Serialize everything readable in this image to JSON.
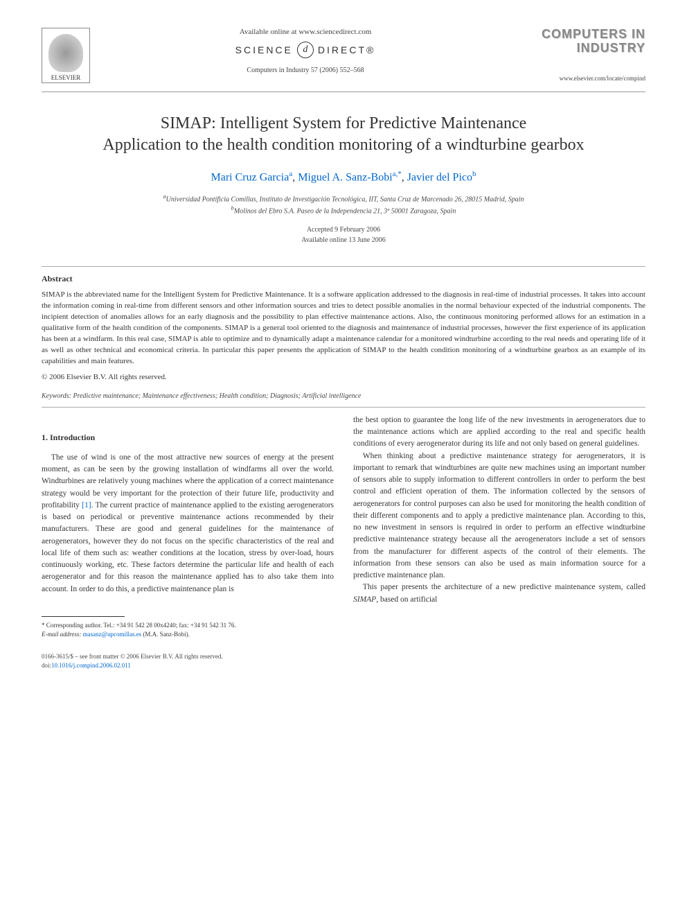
{
  "header": {
    "available_online": "Available online at www.sciencedirect.com",
    "sciencedirect_left": "SCIENCE",
    "sciencedirect_at": "d",
    "sciencedirect_right": "DIRECT®",
    "journal_ref": "Computers in Industry 57 (2006) 552–568",
    "elsevier_label": "ELSEVIER",
    "journal_logo_line1": "COMPUTERS IN",
    "journal_logo_line2": "INDUSTRY",
    "journal_url": "www.elsevier.com/locate/compind"
  },
  "title": {
    "line1": "SIMAP: Intelligent System for Predictive Maintenance",
    "line2": "Application to the health condition monitoring of a windturbine gearbox"
  },
  "authors": {
    "a1_name": "Mari Cruz Garcia",
    "a1_sup": "a",
    "a2_name": "Miguel A. Sanz-Bobi",
    "a2_sup": "a,",
    "a2_corr": "*",
    "a3_name": "Javier del Pico",
    "a3_sup": "b"
  },
  "affiliations": {
    "a": "Universidad Pontificia Comillas, Instituto de Investigación Tecnológica, IIT, Santa Cruz de Marcenado 26, 28015 Madrid, Spain",
    "b": "Molinos del Ebro S.A. Paseo de la Independencia 21, 3º 50001 Zaragoza, Spain",
    "a_sup": "a",
    "b_sup": "b"
  },
  "dates": {
    "accepted": "Accepted 9 February 2006",
    "online": "Available online 13 June 2006"
  },
  "abstract": {
    "header": "Abstract",
    "body": "SIMAP is the abbreviated name for the Intelligent System for Predictive Maintenance. It is a software application addressed to the diagnosis in real-time of industrial processes. It takes into account the information coming in real-time from different sensors and other information sources and tries to detect possible anomalies in the normal behaviour expected of the industrial components. The incipient detection of anomalies allows for an early diagnosis and the possibility to plan effective maintenance actions. Also, the continuous monitoring performed allows for an estimation in a qualitative form of the health condition of the components. SIMAP is a general tool oriented to the diagnosis and maintenance of industrial processes, however the first experience of its application has been at a windfarm. In this real case, SIMAP is able to optimize and to dynamically adapt a maintenance calendar for a monitored windturbine according to the real needs and operating life of it as well as other technical and economical criteria. In particular this paper presents the application of SIMAP to the health condition monitoring of a windturbine gearbox as an example of its capabilities and main features.",
    "copyright": "© 2006 Elsevier B.V. All rights reserved."
  },
  "keywords": {
    "label": "Keywords:",
    "text": " Predictive maintenance; Maintenance effectiveness; Health condition; Diagnosis; Artificial intelligence"
  },
  "section1": {
    "header": "1. Introduction",
    "p1a": "The use of wind is one of the most attractive new sources of energy at the present moment, as can be seen by the growing installation of windfarms all over the world. Windturbines are relatively young machines where the application of a correct maintenance strategy would be very important for the protection of their future life, productivity and profitability ",
    "ref1": "[1]",
    "p1b": ". The current practice of maintenance applied to the existing aerogenerators is based on periodical or preventive maintenance actions recommended by their manufacturers. These are good and general guidelines for the maintenance of aerogenerators, however they do not focus on the specific characteristics of the real and local life of them such as: weather conditions at the location, stress by over-load, hours continuously working, etc. These factors determine the particular life and health of each aerogenerator and for this reason the maintenance applied has to also take them into account. In order to do this, a predictive maintenance plan is",
    "p1c": "the best option to guarantee the long life of the new investments in aerogenerators due to the maintenance actions which are applied according to the real and specific health conditions of every aerogenerator during its life and not only based on general guidelines.",
    "p2": "When thinking about a predictive maintenance strategy for aerogenerators, it is important to remark that windturbines are quite new machines using an important number of sensors able to supply information to different controllers in order to perform the best control and efficient operation of them. The information collected by the sensors of aerogenerators for control purposes can also be used for monitoring the health condition of their different components and to apply a predictive maintenance plan. According to this, no new investment in sensors is required in order to perform an effective windturbine predictive maintenance strategy because all the aerogenerators include a set of sensors from the manufacturer for different aspects of the control of their elements. The information from these sensors can also be used as main information source for a predictive maintenance plan.",
    "p3a": "This paper presents the architecture of a new predictive maintenance system, called ",
    "p3_em": "SIMAP",
    "p3b": ", based on artificial"
  },
  "footnotes": {
    "corr_label": "* Corresponding author. Tel.: +34 91 542 28 00x4240; fax: +34 91 542 31 76.",
    "email_label": "E-mail address:",
    "email": "masanz@upcomillas.es",
    "email_name": " (M.A. Sanz-Bobi)."
  },
  "bottom": {
    "issn": "0166-3615/$ – see front matter © 2006 Elsevier B.V. All rights reserved.",
    "doi_label": "doi:",
    "doi": "10.1016/j.compind.2006.02.011"
  }
}
